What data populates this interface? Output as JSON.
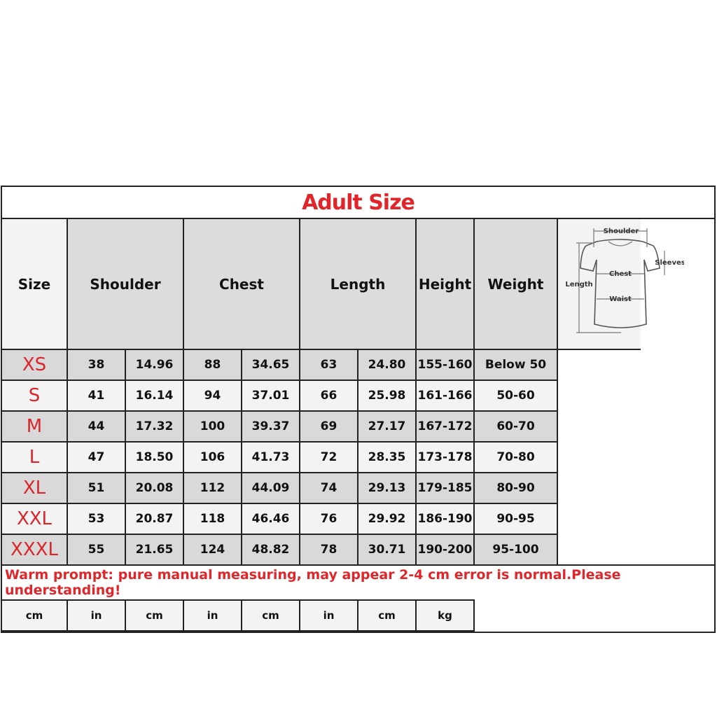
{
  "title": "Adult Size",
  "headers": {
    "size": "Size",
    "groups": [
      "Shoulder",
      "Chest",
      "Length",
      "Height",
      "Weight"
    ],
    "units": [
      "cm",
      "in",
      "cm",
      "in",
      "cm",
      "in",
      "cm",
      "kg"
    ]
  },
  "rows": [
    {
      "size": "XS",
      "values": [
        "38",
        "14.96",
        "88",
        "34.65",
        "63",
        "24.80",
        "155-160",
        "Below 50"
      ]
    },
    {
      "size": "S",
      "values": [
        "41",
        "16.14",
        "94",
        "37.01",
        "66",
        "25.98",
        "161-166",
        "50-60"
      ]
    },
    {
      "size": "M",
      "values": [
        "44",
        "17.32",
        "100",
        "39.37",
        "69",
        "27.17",
        "167-172",
        "60-70"
      ]
    },
    {
      "size": "L",
      "values": [
        "47",
        "18.50",
        "106",
        "41.73",
        "72",
        "28.35",
        "173-178",
        "70-80"
      ]
    },
    {
      "size": "XL",
      "values": [
        "51",
        "20.08",
        "112",
        "44.09",
        "74",
        "29.13",
        "179-185",
        "80-90"
      ]
    },
    {
      "size": "XXL",
      "values": [
        "53",
        "20.87",
        "118",
        "46.46",
        "76",
        "29.92",
        "186-190",
        "90-95"
      ]
    },
    {
      "size": "XXXL",
      "values": [
        "55",
        "21.65",
        "124",
        "48.82",
        "78",
        "30.71",
        "190-200",
        "95-100"
      ]
    }
  ],
  "diagram": {
    "shoulder": "Shoulder",
    "sleeves": "Sleeves",
    "chest": "Chest",
    "length": "Length",
    "waist": "Waist"
  },
  "note": "Warm prompt: pure manual measuring, may appear 2-4 cm error is normal.Please understanding!",
  "colors": {
    "accent_red": "#e0262a",
    "row_gray": "#d9d9d9",
    "row_light": "#f3f3f3"
  }
}
